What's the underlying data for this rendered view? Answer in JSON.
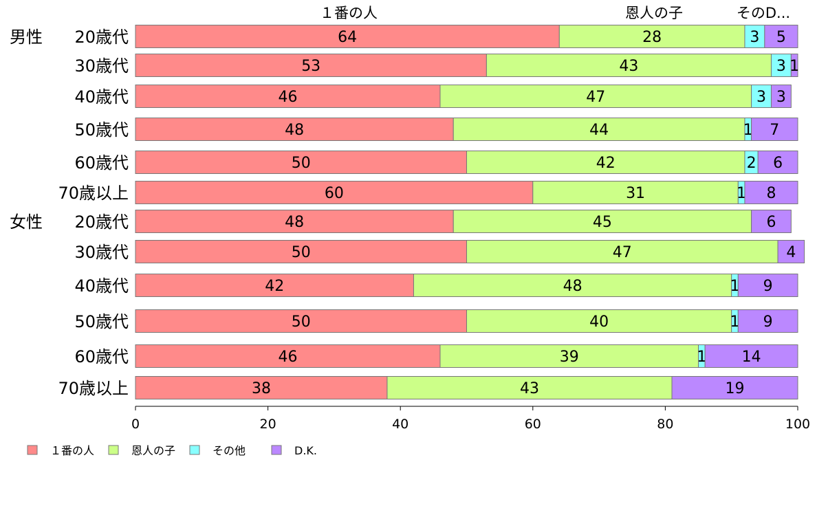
{
  "chart_data": {
    "type": "bar",
    "orientation": "horizontal",
    "stacked": true,
    "title": "",
    "xlabel": "",
    "ylabel": "",
    "xlim": [
      0,
      100
    ],
    "x_ticks": [
      "0",
      "20",
      "40",
      "60",
      "80",
      "100"
    ],
    "top_labels": [
      "１番の人",
      "恩人の子",
      "そのD..."
    ],
    "group_labels": [
      "男性",
      "女性"
    ],
    "categories": [
      "20歳代",
      "30歳代",
      "40歳代",
      "50歳代",
      "60歳代",
      "70歳以上",
      "20歳代",
      "30歳代",
      "40歳代",
      "50歳代",
      "60歳代",
      "70歳以上"
    ],
    "category_group": [
      "男性",
      "",
      "",
      "",
      "",
      "",
      "女性",
      "",
      "",
      "",
      "",
      ""
    ],
    "series": [
      {
        "name": "１番の人",
        "color": "#ff8a8a",
        "values": [
          64,
          53,
          46,
          48,
          50,
          60,
          48,
          50,
          42,
          50,
          46,
          38
        ],
        "labels": [
          "64",
          "53",
          "46",
          "48",
          "50",
          "60",
          "48",
          "50",
          "42",
          "50",
          "46",
          "38"
        ]
      },
      {
        "name": "恩人の子",
        "color": "#ccff88",
        "values": [
          28,
          43,
          47,
          44,
          42,
          31,
          45,
          47,
          48,
          40,
          39,
          43
        ],
        "labels": [
          "28",
          "43",
          "47",
          "44",
          "42",
          "31",
          "45",
          "47",
          "48",
          "40",
          "39",
          "43"
        ]
      },
      {
        "name": "その他",
        "color": "#88ffff",
        "values": [
          3,
          3,
          3,
          1,
          2,
          1,
          0,
          0,
          1,
          1,
          1,
          0
        ],
        "labels": [
          "3",
          "3",
          "3",
          "1",
          "2",
          "1",
          "",
          "",
          "1",
          "1",
          "1",
          ""
        ]
      },
      {
        "name": "D.K.",
        "color": "#bb88ff",
        "values": [
          5,
          1,
          3,
          7,
          6,
          8,
          6,
          4,
          9,
          9,
          14,
          19
        ],
        "labels": [
          "5",
          "1",
          "3",
          "7",
          "6",
          "8",
          "6",
          "4",
          "9",
          "9",
          "14",
          "19"
        ]
      }
    ],
    "legend": {
      "position": "bottom-left",
      "entries": [
        "１番の人",
        "恩人の子",
        "その他",
        "D.K."
      ]
    },
    "grid": false
  }
}
